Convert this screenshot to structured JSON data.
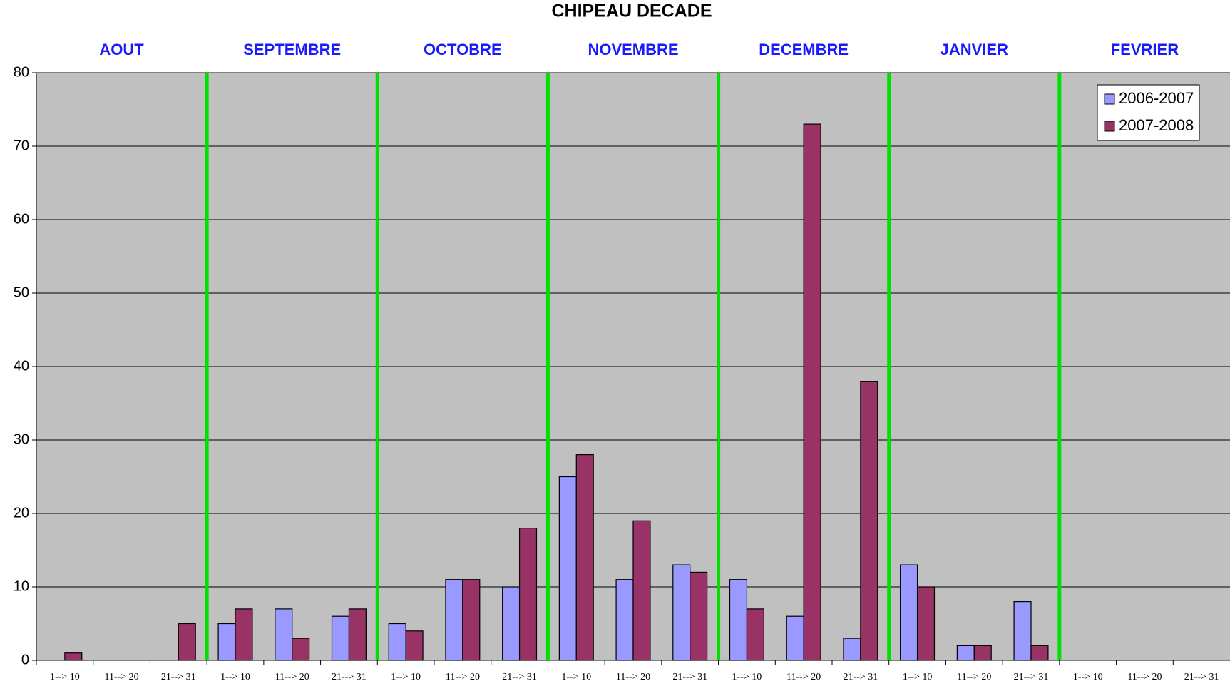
{
  "chart_data": {
    "type": "bar",
    "title": "CHIPEAU DECADE",
    "month_groups": [
      "AOUT",
      "SEPTEMBRE",
      "OCTOBRE",
      "NOVEMBRE",
      "DECEMBRE",
      "JANVIER",
      "FEVRIER"
    ],
    "categories": [
      "1--> 10",
      "11--> 20",
      "21--> 31",
      "1--> 10",
      "11--> 20",
      "21--> 31",
      "1--> 10",
      "11--> 20",
      "21--> 31",
      "1--> 10",
      "11--> 20",
      "21--> 31",
      "1--> 10",
      "11--> 20",
      "21--> 31",
      "1--> 10",
      "11--> 20",
      "21--> 31",
      "1--> 10",
      "11--> 20",
      "21--> 31"
    ],
    "series": [
      {
        "name": "2006-2007",
        "color": "#9999ff",
        "values": [
          0,
          0,
          0,
          5,
          7,
          6,
          5,
          11,
          10,
          25,
          11,
          13,
          11,
          6,
          3,
          13,
          2,
          8,
          0,
          0,
          0
        ]
      },
      {
        "name": "2007-2008",
        "color": "#993366",
        "values": [
          1,
          0,
          5,
          7,
          3,
          7,
          4,
          11,
          18,
          28,
          19,
          12,
          7,
          73,
          38,
          10,
          2,
          2,
          0,
          0,
          0
        ]
      }
    ],
    "ylim": [
      0,
      80
    ],
    "yticks": [
      0,
      10,
      20,
      30,
      40,
      50,
      60,
      70,
      80
    ],
    "grid": true,
    "legend": "upper right",
    "background": "#c0c0c0",
    "separator_color": "#00e000"
  }
}
